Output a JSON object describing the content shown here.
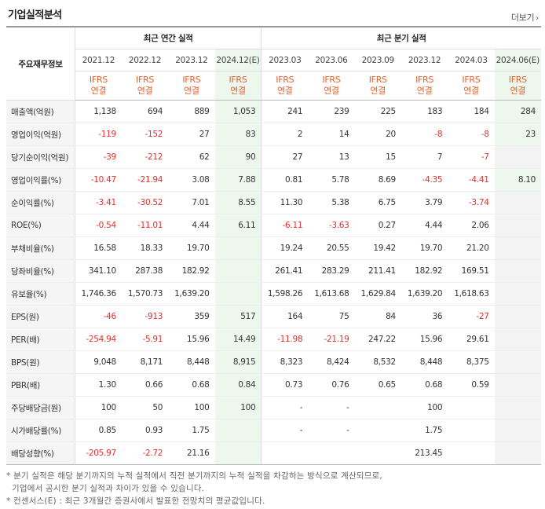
{
  "header": {
    "title": "기업실적분석",
    "more_label": "더보기"
  },
  "table": {
    "label_header": "주요재무정보",
    "group_annual": "최근 연간 실적",
    "group_quarter": "최근 분기 실적",
    "ifrs_top": "IFRS",
    "ifrs_bottom": "연결",
    "periods": [
      "2021.12",
      "2022.12",
      "2023.12",
      "2024.12(E)",
      "2023.03",
      "2023.06",
      "2023.09",
      "2023.12",
      "2024.03",
      "2024.06(E)"
    ],
    "rows": [
      {
        "label": "매출액(억원)",
        "values": [
          "1,138",
          "694",
          "889",
          "1,053",
          "241",
          "239",
          "225",
          "183",
          "184",
          "284"
        ]
      },
      {
        "label": "영업이익(억원)",
        "values": [
          "-119",
          "-152",
          "27",
          "83",
          "2",
          "14",
          "20",
          "-8",
          "-8",
          "23"
        ]
      },
      {
        "label": "당기순이익(억원)",
        "values": [
          "-39",
          "-212",
          "62",
          "90",
          "27",
          "13",
          "15",
          "7",
          "-7",
          ""
        ]
      },
      {
        "label": "영업이익률(%)",
        "values": [
          "-10.47",
          "-21.94",
          "3.08",
          "7.88",
          "0.81",
          "5.78",
          "8.69",
          "-4.35",
          "-4.41",
          "8.10"
        ]
      },
      {
        "label": "순이익률(%)",
        "values": [
          "-3.41",
          "-30.52",
          "7.01",
          "8.55",
          "11.30",
          "5.38",
          "6.75",
          "3.79",
          "-3.74",
          ""
        ]
      },
      {
        "label": "ROE(%)",
        "values": [
          "-0.54",
          "-11.01",
          "4.44",
          "6.11",
          "-6.11",
          "-3.63",
          "0.27",
          "4.44",
          "2.06",
          ""
        ]
      },
      {
        "label": "부채비율(%)",
        "values": [
          "16.58",
          "18.33",
          "19.70",
          "",
          "19.24",
          "20.55",
          "19.42",
          "19.70",
          "21.20",
          ""
        ]
      },
      {
        "label": "당좌비율(%)",
        "values": [
          "341.10",
          "287.38",
          "182.92",
          "",
          "261.41",
          "283.29",
          "211.41",
          "182.92",
          "169.51",
          ""
        ]
      },
      {
        "label": "유보율(%)",
        "values": [
          "1,746.36",
          "1,570.73",
          "1,639.20",
          "",
          "1,598.26",
          "1,613.68",
          "1,629.84",
          "1,639.20",
          "1,618.63",
          ""
        ]
      },
      {
        "label": "EPS(원)",
        "values": [
          "-46",
          "-913",
          "359",
          "517",
          "164",
          "75",
          "84",
          "36",
          "-27",
          ""
        ]
      },
      {
        "label": "PER(배)",
        "values": [
          "-254.94",
          "-5.91",
          "15.96",
          "14.49",
          "-11.98",
          "-21.19",
          "247.22",
          "15.96",
          "29.61",
          ""
        ]
      },
      {
        "label": "BPS(원)",
        "values": [
          "9,048",
          "8,171",
          "8,448",
          "8,915",
          "8,323",
          "8,424",
          "8,532",
          "8,448",
          "8,375",
          ""
        ]
      },
      {
        "label": "PBR(배)",
        "values": [
          "1.30",
          "0.66",
          "0.68",
          "0.84",
          "0.73",
          "0.76",
          "0.65",
          "0.68",
          "0.59",
          ""
        ]
      },
      {
        "label": "주당배당금(원)",
        "values": [
          "100",
          "50",
          "100",
          "100",
          "-",
          "-",
          "",
          "100",
          "",
          ""
        ]
      },
      {
        "label": "시가배당률(%)",
        "values": [
          "0.85",
          "0.93",
          "1.75",
          "",
          "-",
          "-",
          "",
          "1.75",
          "",
          ""
        ]
      },
      {
        "label": "배당성향(%)",
        "values": [
          "-205.97",
          "-2.72",
          "21.16",
          "",
          "",
          "",
          "",
          "213.45",
          "",
          ""
        ]
      }
    ]
  },
  "notes": {
    "line1": "* 분기 실적은 해당 분기까지의 누적 실적에서 직전 분기까지의 누적 실적을 차감하는 방식으로 계산되므로,",
    "line2": "기업에서 공시한 분기 실적과 차이가 있을 수 있습니다.",
    "line3": "* 컨센서스(E) : 최근 3개월간 증권사에서 발표한 전망치의 평균값입니다."
  },
  "colors": {
    "negative": "#e0302e",
    "ifrs": "#e5612a",
    "estimate_bg": "#eef7ee",
    "label_bg": "#f5f5f5"
  }
}
